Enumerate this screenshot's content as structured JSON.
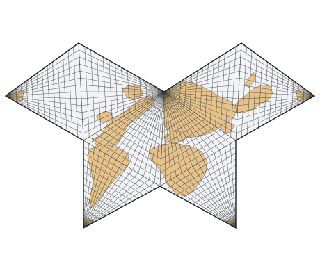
{
  "map": {
    "projection": "butterfly-polyhedral",
    "graticule": true,
    "colors": {
      "ocean": "#f2f3f7",
      "land": "#e6c38c",
      "graticule": "#3a3a3a",
      "outline": "#1e1e1e",
      "background": "#ffffff"
    },
    "faces": [
      {
        "id": "left-upper-face",
        "continents": [
          "north-america-west",
          "alaska",
          "greenland"
        ]
      },
      {
        "id": "right-upper-face",
        "continents": [
          "asia-east",
          "japan",
          "new-guinea"
        ]
      },
      {
        "id": "left-lower-face",
        "continents": [
          "south-america"
        ]
      },
      {
        "id": "center-lower-face",
        "continents": [
          "africa",
          "europe"
        ]
      },
      {
        "id": "left-tip",
        "continents": [
          "antarctica-segment"
        ]
      },
      {
        "id": "right-tip",
        "continents": [
          "antarctica-segment"
        ]
      },
      {
        "id": "bottom-left-tip",
        "continents": [
          "antarctica-segment"
        ]
      },
      {
        "id": "bottom-right-tip",
        "continents": [
          "antarctica-segment"
        ]
      }
    ]
  }
}
